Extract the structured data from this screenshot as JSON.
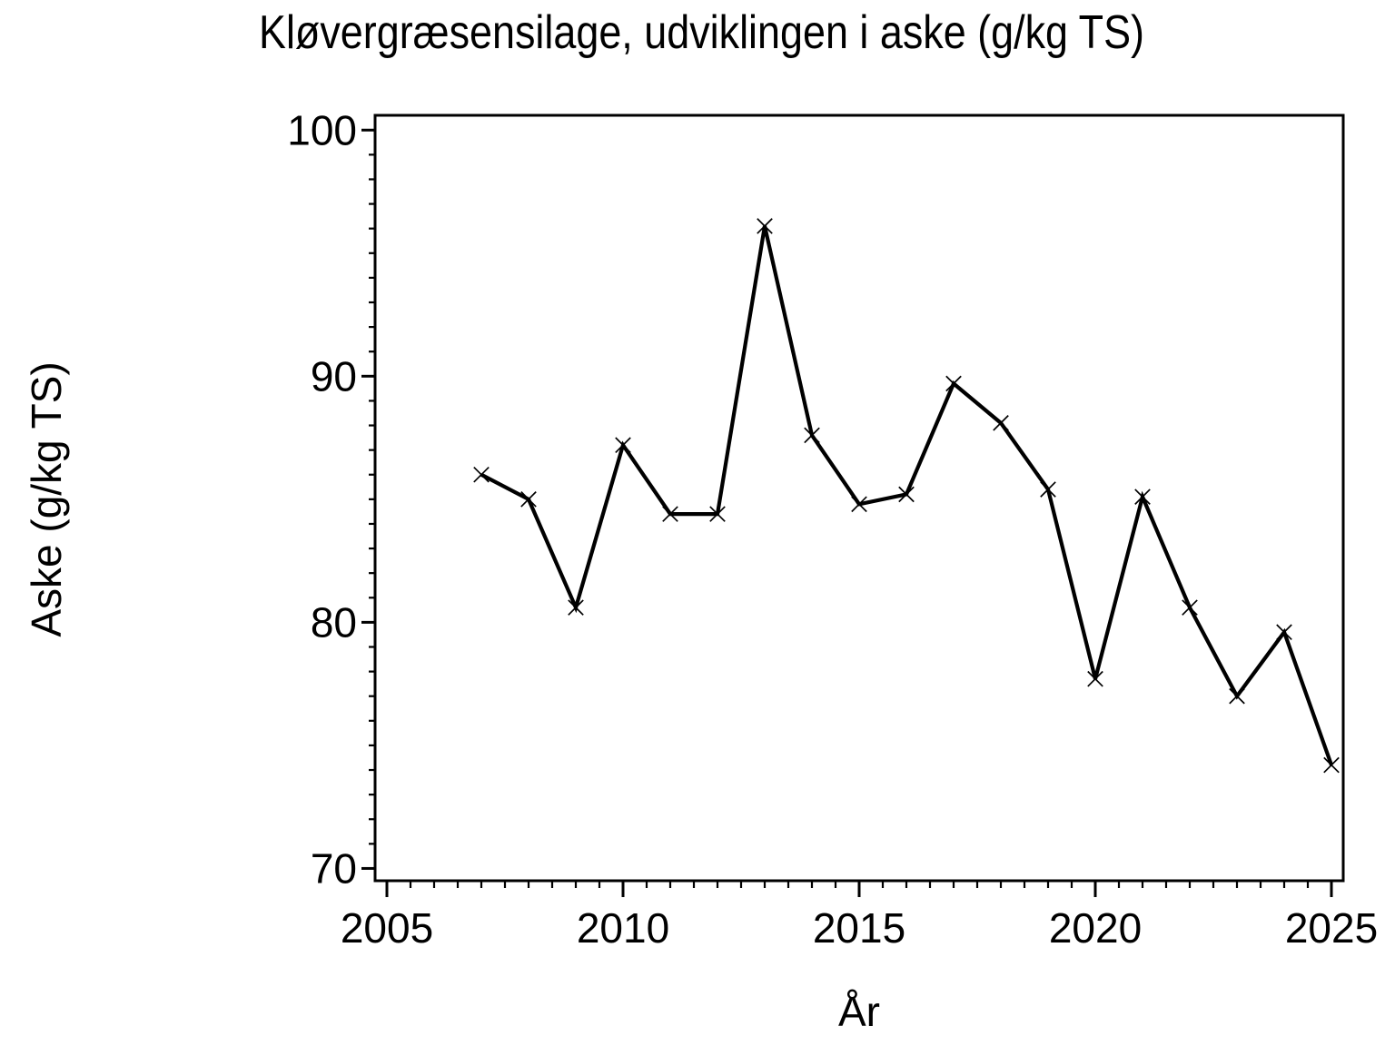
{
  "chart_data": {
    "type": "line",
    "title": "Kløvergræsensilage, udviklingen i aske (g/kg TS)",
    "xlabel": "År",
    "ylabel": "Aske (g/kg TS)",
    "series": [
      {
        "name": "Aske (g/kg TS)",
        "x": [
          2007,
          2008,
          2009,
          2010,
          2011,
          2012,
          2013,
          2014,
          2015,
          2016,
          2017,
          2018,
          2019,
          2020,
          2021,
          2022,
          2023,
          2024,
          2025
        ],
        "y": [
          86.0,
          85.0,
          80.6,
          87.2,
          84.4,
          84.4,
          96.1,
          87.6,
          84.8,
          85.2,
          89.7,
          88.1,
          85.4,
          77.7,
          85.1,
          80.6,
          77.0,
          79.6,
          74.2
        ]
      }
    ],
    "marker": "x",
    "line_color": "#000000",
    "background_color": "#ffffff",
    "grid": false,
    "legend": "none",
    "xlim": [
      2004.75,
      2025.25
    ],
    "ylim": [
      69.5,
      100.6
    ],
    "x_major_ticks": [
      2005,
      2010,
      2015,
      2020,
      2025
    ],
    "x_major_tick_labels": [
      "2005",
      "2010",
      "2015",
      "2020",
      "2025"
    ],
    "x_minor_tick_step": 0.5,
    "x_tick_range": [
      2005,
      2025
    ],
    "y_major_ticks": [
      70,
      80,
      90,
      100
    ],
    "y_major_tick_labels": [
      "70",
      "80",
      "90",
      "100"
    ],
    "y_minor_tick_step": 1,
    "y_tick_range": [
      70,
      100
    ]
  }
}
